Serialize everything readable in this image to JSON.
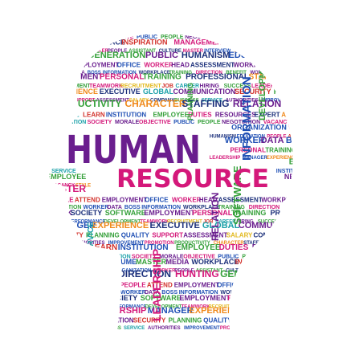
{
  "graphic": {
    "headline": "HUMAN",
    "subheadline": "RESOURCE",
    "palette": {
      "purple": "#6a1e8e",
      "magenta": "#d4187a",
      "blue": "#1f4fb4",
      "navy": "#1b2f7a",
      "green": "#35a03a",
      "lime": "#8cbf2e",
      "orange": "#f08a1c",
      "gold": "#e2b91f",
      "teal": "#1aa0a8",
      "red": "#d2312b"
    },
    "words": [
      {
        "text": "SOCIETY",
        "color": "magenta"
      },
      {
        "text": "MORALE",
        "color": "purple"
      },
      {
        "text": "OBJECTIVE",
        "color": "magenta"
      },
      {
        "text": "PUBLIC",
        "color": "blue"
      },
      {
        "text": "PEOPLE",
        "color": "green"
      },
      {
        "text": "NEGOTIATION",
        "color": "purple"
      },
      {
        "text": "VACANCY",
        "color": "magenta"
      },
      {
        "text": "STYLE",
        "color": "orange"
      },
      {
        "text": "RESUME",
        "color": "blue"
      },
      {
        "text": "MASTER",
        "color": "green"
      },
      {
        "text": "MEDIA",
        "color": "purple"
      },
      {
        "text": "WORKPLACE",
        "color": "navy"
      },
      {
        "text": "INSPIRATION",
        "color": "red"
      },
      {
        "text": "MANAGEMENT",
        "color": "magenta"
      },
      {
        "text": "EMPLOYMENT",
        "color": "navy"
      },
      {
        "text": "PRODUCTION",
        "color": "purple"
      },
      {
        "text": "ORGANIZATION",
        "color": "blue"
      },
      {
        "text": "WORKER",
        "color": "magenta"
      },
      {
        "text": "PEOPLE",
        "color": "purple"
      },
      {
        "text": "ASSISTANT",
        "color": "green"
      },
      {
        "text": "CULTURE",
        "color": "navy"
      },
      {
        "text": "MASTER",
        "color": "magenta"
      },
      {
        "text": "INTERVIEW",
        "color": "blue"
      },
      {
        "text": "STAFF",
        "color": "orange"
      },
      {
        "text": "SKILL",
        "color": "purple"
      },
      {
        "text": "DIRECTION",
        "color": "navy"
      },
      {
        "text": "HUNTING",
        "color": "magenta"
      },
      {
        "text": "GENERATION",
        "color": "green"
      },
      {
        "text": "PUBLIC",
        "color": "purple"
      },
      {
        "text": "HUMANISM",
        "color": "navy"
      },
      {
        "text": "EDUCATION",
        "color": "blue"
      },
      {
        "text": "PEOPLE",
        "color": "magenta"
      },
      {
        "text": "ATTEND",
        "color": "red"
      },
      {
        "text": "EMPLOYMENT",
        "color": "purple"
      },
      {
        "text": "OFFICE",
        "color": "blue"
      },
      {
        "text": "WORKER",
        "color": "magenta"
      },
      {
        "text": "HEAD",
        "color": "purple"
      },
      {
        "text": "ASSESSMENT",
        "color": "navy"
      },
      {
        "text": "WORKPLACE",
        "color": "purple"
      },
      {
        "text": "EDUCATION",
        "color": "green"
      },
      {
        "text": "WORKER",
        "color": "blue"
      },
      {
        "text": "DATA",
        "color": "purple"
      },
      {
        "text": "BOSS",
        "color": "blue"
      },
      {
        "text": "INFORMATION",
        "color": "blue"
      },
      {
        "text": "WORKPLACE",
        "color": "navy"
      },
      {
        "text": "TRAINING",
        "color": "green"
      },
      {
        "text": "DIRECTION",
        "color": "magenta"
      },
      {
        "text": "BENEFIT",
        "color": "green"
      },
      {
        "text": "WORK",
        "color": "purple"
      },
      {
        "text": "SOCIETY",
        "color": "navy"
      },
      {
        "text": "SOFTWARE",
        "color": "green"
      },
      {
        "text": "EMPLOYMENT",
        "color": "purple"
      },
      {
        "text": "PERSONAL",
        "color": "magenta"
      },
      {
        "text": "TRAINING",
        "color": "green"
      },
      {
        "text": "PROFESSIONAL",
        "color": "navy"
      },
      {
        "text": "STAFF",
        "color": "orange"
      },
      {
        "text": "PERFORMANCE",
        "color": "blue"
      },
      {
        "text": "DEVELOPMENT",
        "color": "green"
      },
      {
        "text": "TEAMWORK",
        "color": "magenta"
      },
      {
        "text": "RECRUITMENT",
        "color": "gold"
      },
      {
        "text": "JOB",
        "color": "red"
      },
      {
        "text": "CAREER",
        "color": "teal"
      },
      {
        "text": "HIRING",
        "color": "purple"
      },
      {
        "text": "SUCCESS",
        "color": "green"
      },
      {
        "text": "LEADERSHIP",
        "color": "magenta"
      },
      {
        "text": "MANAGER",
        "color": "blue"
      },
      {
        "text": "EXPERIENCE",
        "color": "orange"
      },
      {
        "text": "EXECUTIVE",
        "color": "navy"
      },
      {
        "text": "GLOBAL",
        "color": "teal"
      },
      {
        "text": "COMMUNICATION",
        "color": "purple"
      },
      {
        "text": "SECURITY",
        "color": "red"
      },
      {
        "text": "PLANNING",
        "color": "green"
      },
      {
        "text": "QUALITY",
        "color": "blue"
      },
      {
        "text": "SUPPORT",
        "color": "magenta"
      },
      {
        "text": "ASSESSMENT",
        "color": "purple"
      },
      {
        "text": "SALARY",
        "color": "gold"
      },
      {
        "text": "COMPANY",
        "color": "navy"
      },
      {
        "text": "BUSINESS",
        "color": "green"
      },
      {
        "text": "SERVICE",
        "color": "teal"
      },
      {
        "text": "AUTHORITIES",
        "color": "purple"
      },
      {
        "text": "IMPROVEMENT",
        "color": "blue"
      },
      {
        "text": "PROMOTION",
        "color": "magenta"
      },
      {
        "text": "PRODUCTIVITY",
        "color": "green"
      },
      {
        "text": "CHARACTER",
        "color": "orange"
      },
      {
        "text": "STAFFING",
        "color": "navy"
      },
      {
        "text": "RELATION",
        "color": "purple"
      },
      {
        "text": "SUGGESTION",
        "color": "gold"
      },
      {
        "text": "CAPITAL",
        "color": "teal"
      },
      {
        "text": "LEARN",
        "color": "red"
      },
      {
        "text": "INSTITUTION",
        "color": "blue"
      },
      {
        "text": "EMPLOYEE",
        "color": "green"
      },
      {
        "text": "DUTIES",
        "color": "magenta"
      },
      {
        "text": "RESOURCES",
        "color": "purple"
      },
      {
        "text": "EXPERT",
        "color": "navy"
      },
      {
        "text": "ABILITY",
        "color": "orange"
      },
      {
        "text": "FORMATION",
        "color": "teal"
      }
    ]
  }
}
